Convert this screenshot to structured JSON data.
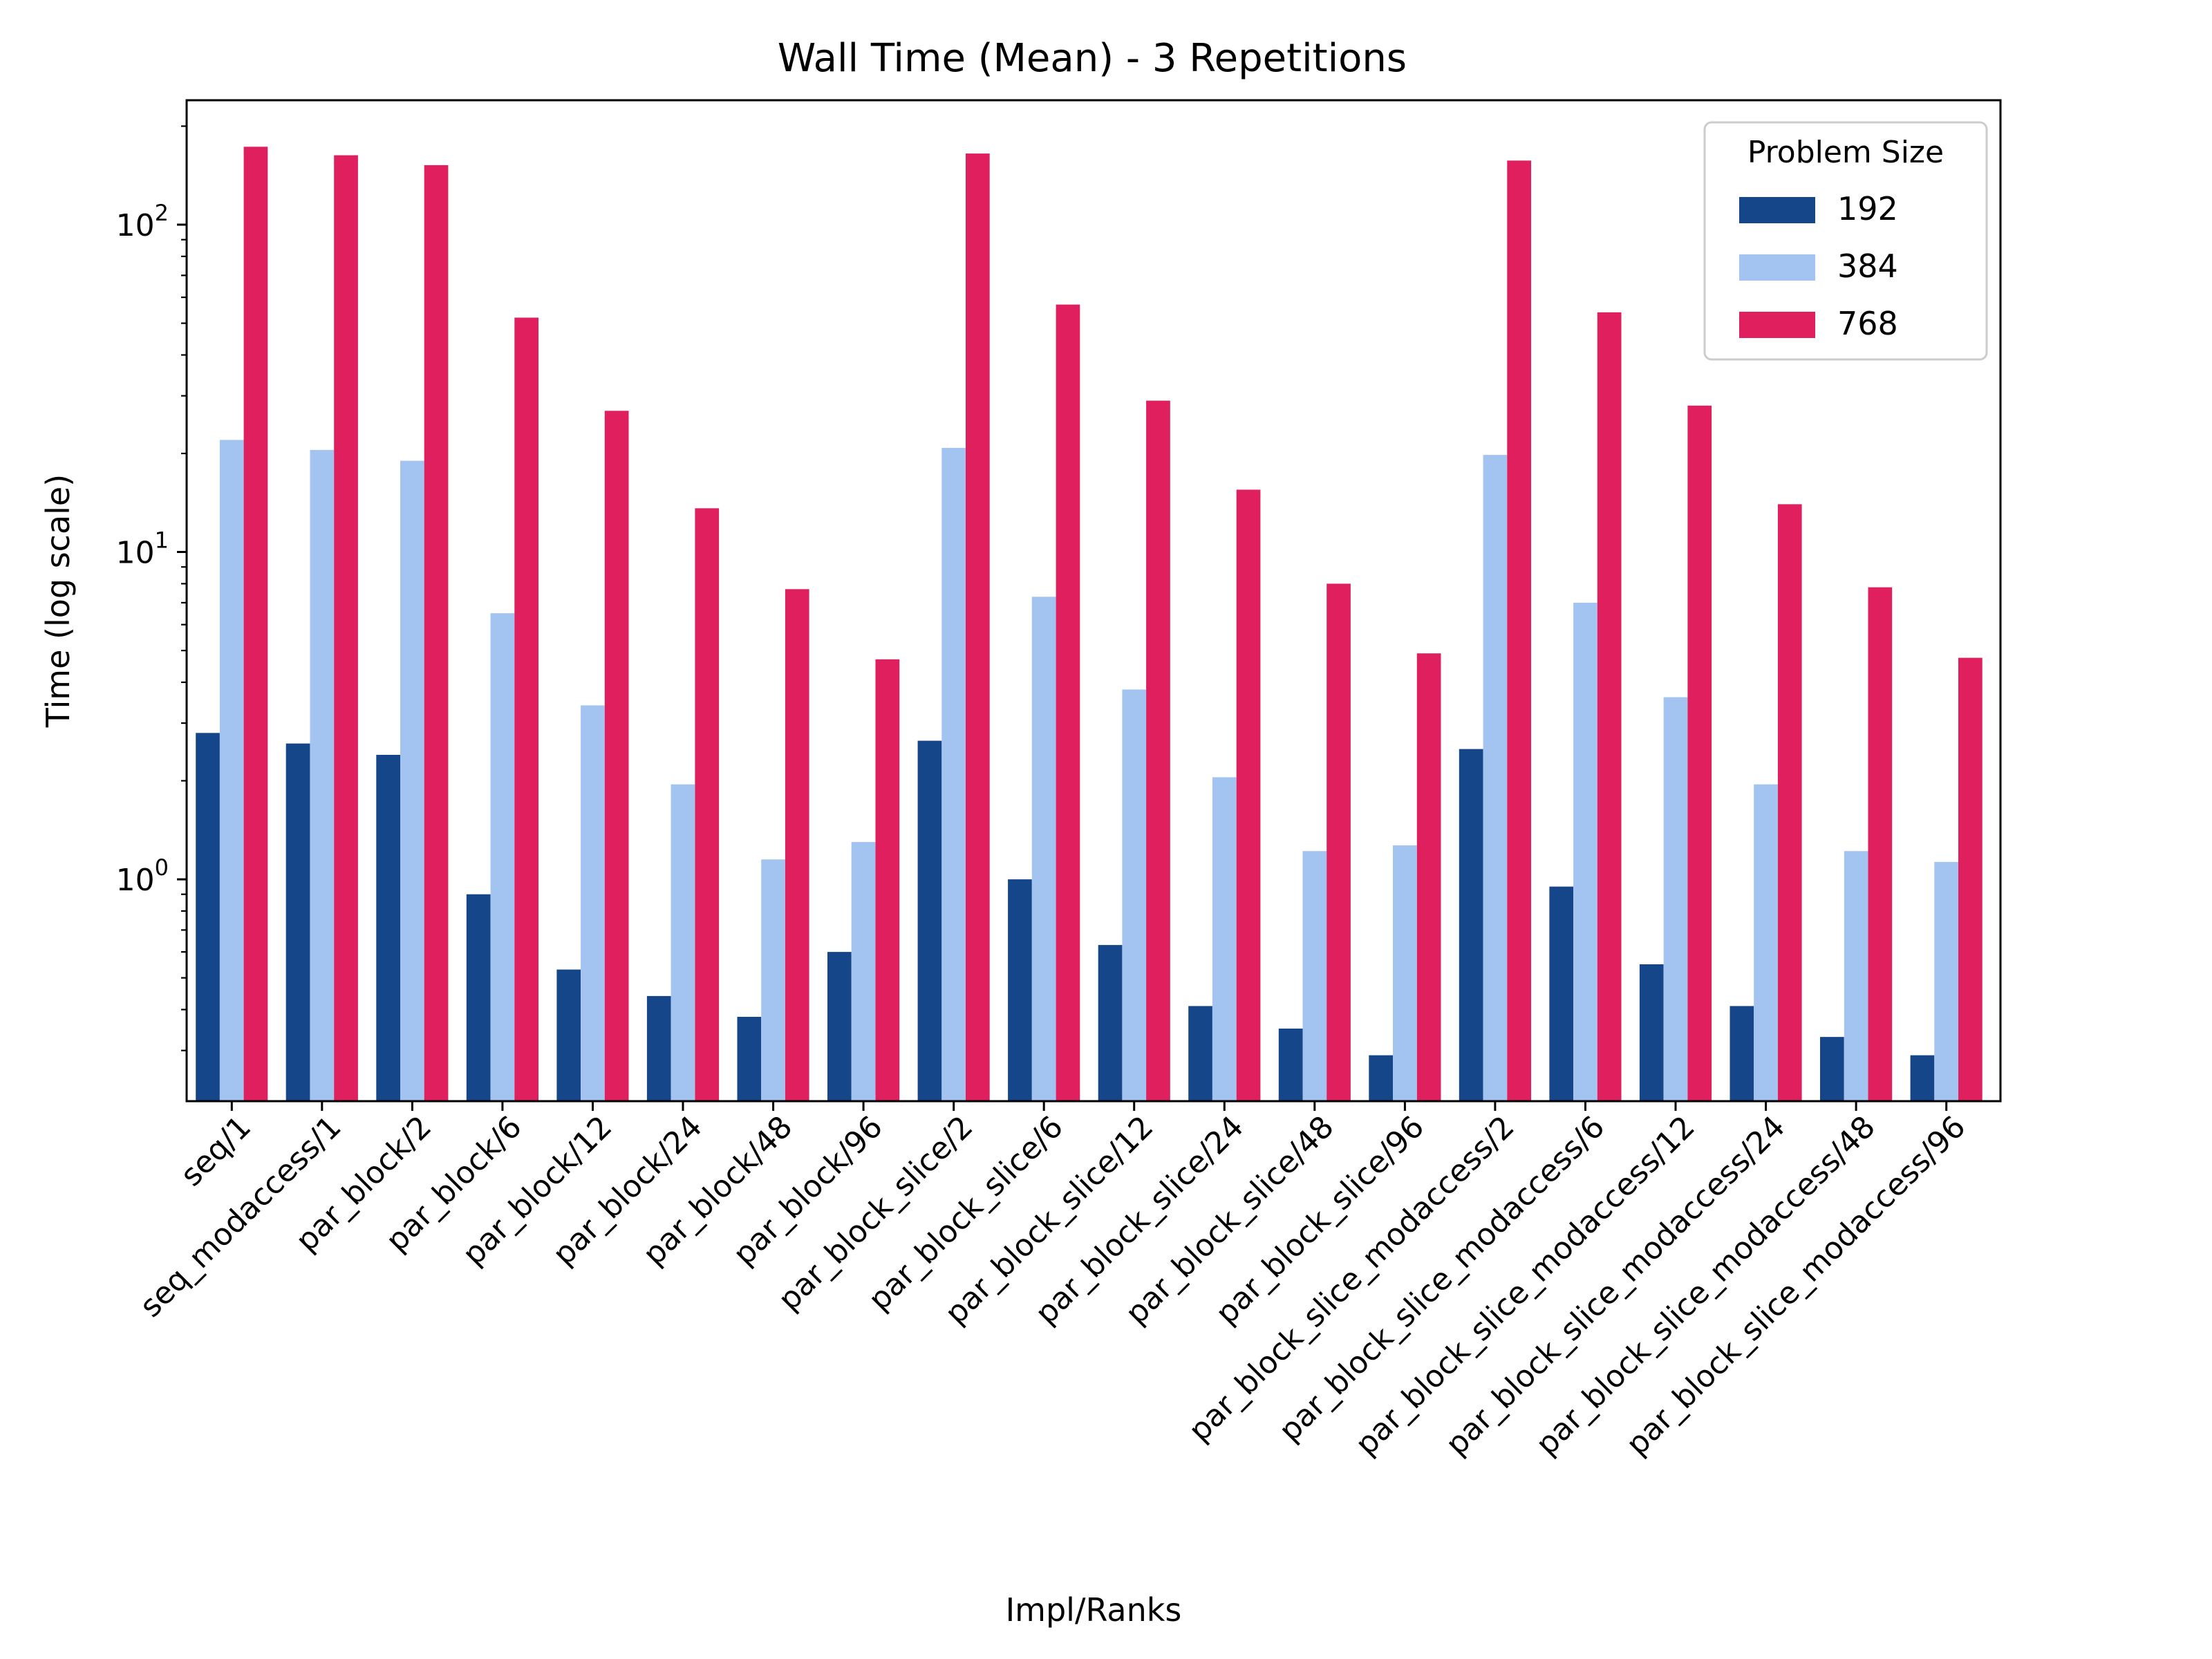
{
  "chart_data": {
    "type": "bar",
    "title": "Wall Time (Mean) - 3 Repetitions",
    "xlabel": "Impl/Ranks",
    "ylabel": "Time (log scale)",
    "yscale": "log",
    "ylim": [
      0.21,
      240
    ],
    "ytick_base": "10",
    "yticks": [
      {
        "exp": "0",
        "value": 1
      },
      {
        "exp": "1",
        "value": 10
      },
      {
        "exp": "2",
        "value": 100
      }
    ],
    "grid": false,
    "legend": {
      "title": "Problem Size",
      "placement": "top-right"
    },
    "categories": [
      "seq/1",
      "seq_modaccess/1",
      "par_block/2",
      "par_block/6",
      "par_block/12",
      "par_block/24",
      "par_block/48",
      "par_block/96",
      "par_block_slice/2",
      "par_block_slice/6",
      "par_block_slice/12",
      "par_block_slice/24",
      "par_block_slice/48",
      "par_block_slice/96",
      "par_block_slice_modaccess/2",
      "par_block_slice_modaccess/6",
      "par_block_slice_modaccess/12",
      "par_block_slice_modaccess/24",
      "par_block_slice_modaccess/48",
      "par_block_slice_modaccess/96"
    ],
    "series": [
      {
        "name": "192",
        "color": "#15468a",
        "values": [
          2.8,
          2.6,
          2.4,
          0.9,
          0.53,
          0.44,
          0.38,
          0.6,
          2.65,
          1.0,
          0.63,
          0.41,
          0.35,
          0.29,
          2.5,
          0.95,
          0.55,
          0.41,
          0.33,
          0.29
        ]
      },
      {
        "name": "384",
        "color": "#a3c4f1",
        "values": [
          22,
          20.5,
          19,
          6.5,
          3.4,
          1.95,
          1.15,
          1.3,
          20.8,
          7.3,
          3.8,
          2.05,
          1.22,
          1.27,
          19.8,
          7.0,
          3.6,
          1.95,
          1.22,
          1.13
        ]
      },
      {
        "name": "768",
        "color": "#e0205e",
        "values": [
          173,
          163,
          152,
          52,
          27,
          13.6,
          7.7,
          4.7,
          165,
          57,
          29,
          15.5,
          8.0,
          4.9,
          157,
          54,
          28,
          14,
          7.8,
          4.75
        ]
      }
    ]
  }
}
